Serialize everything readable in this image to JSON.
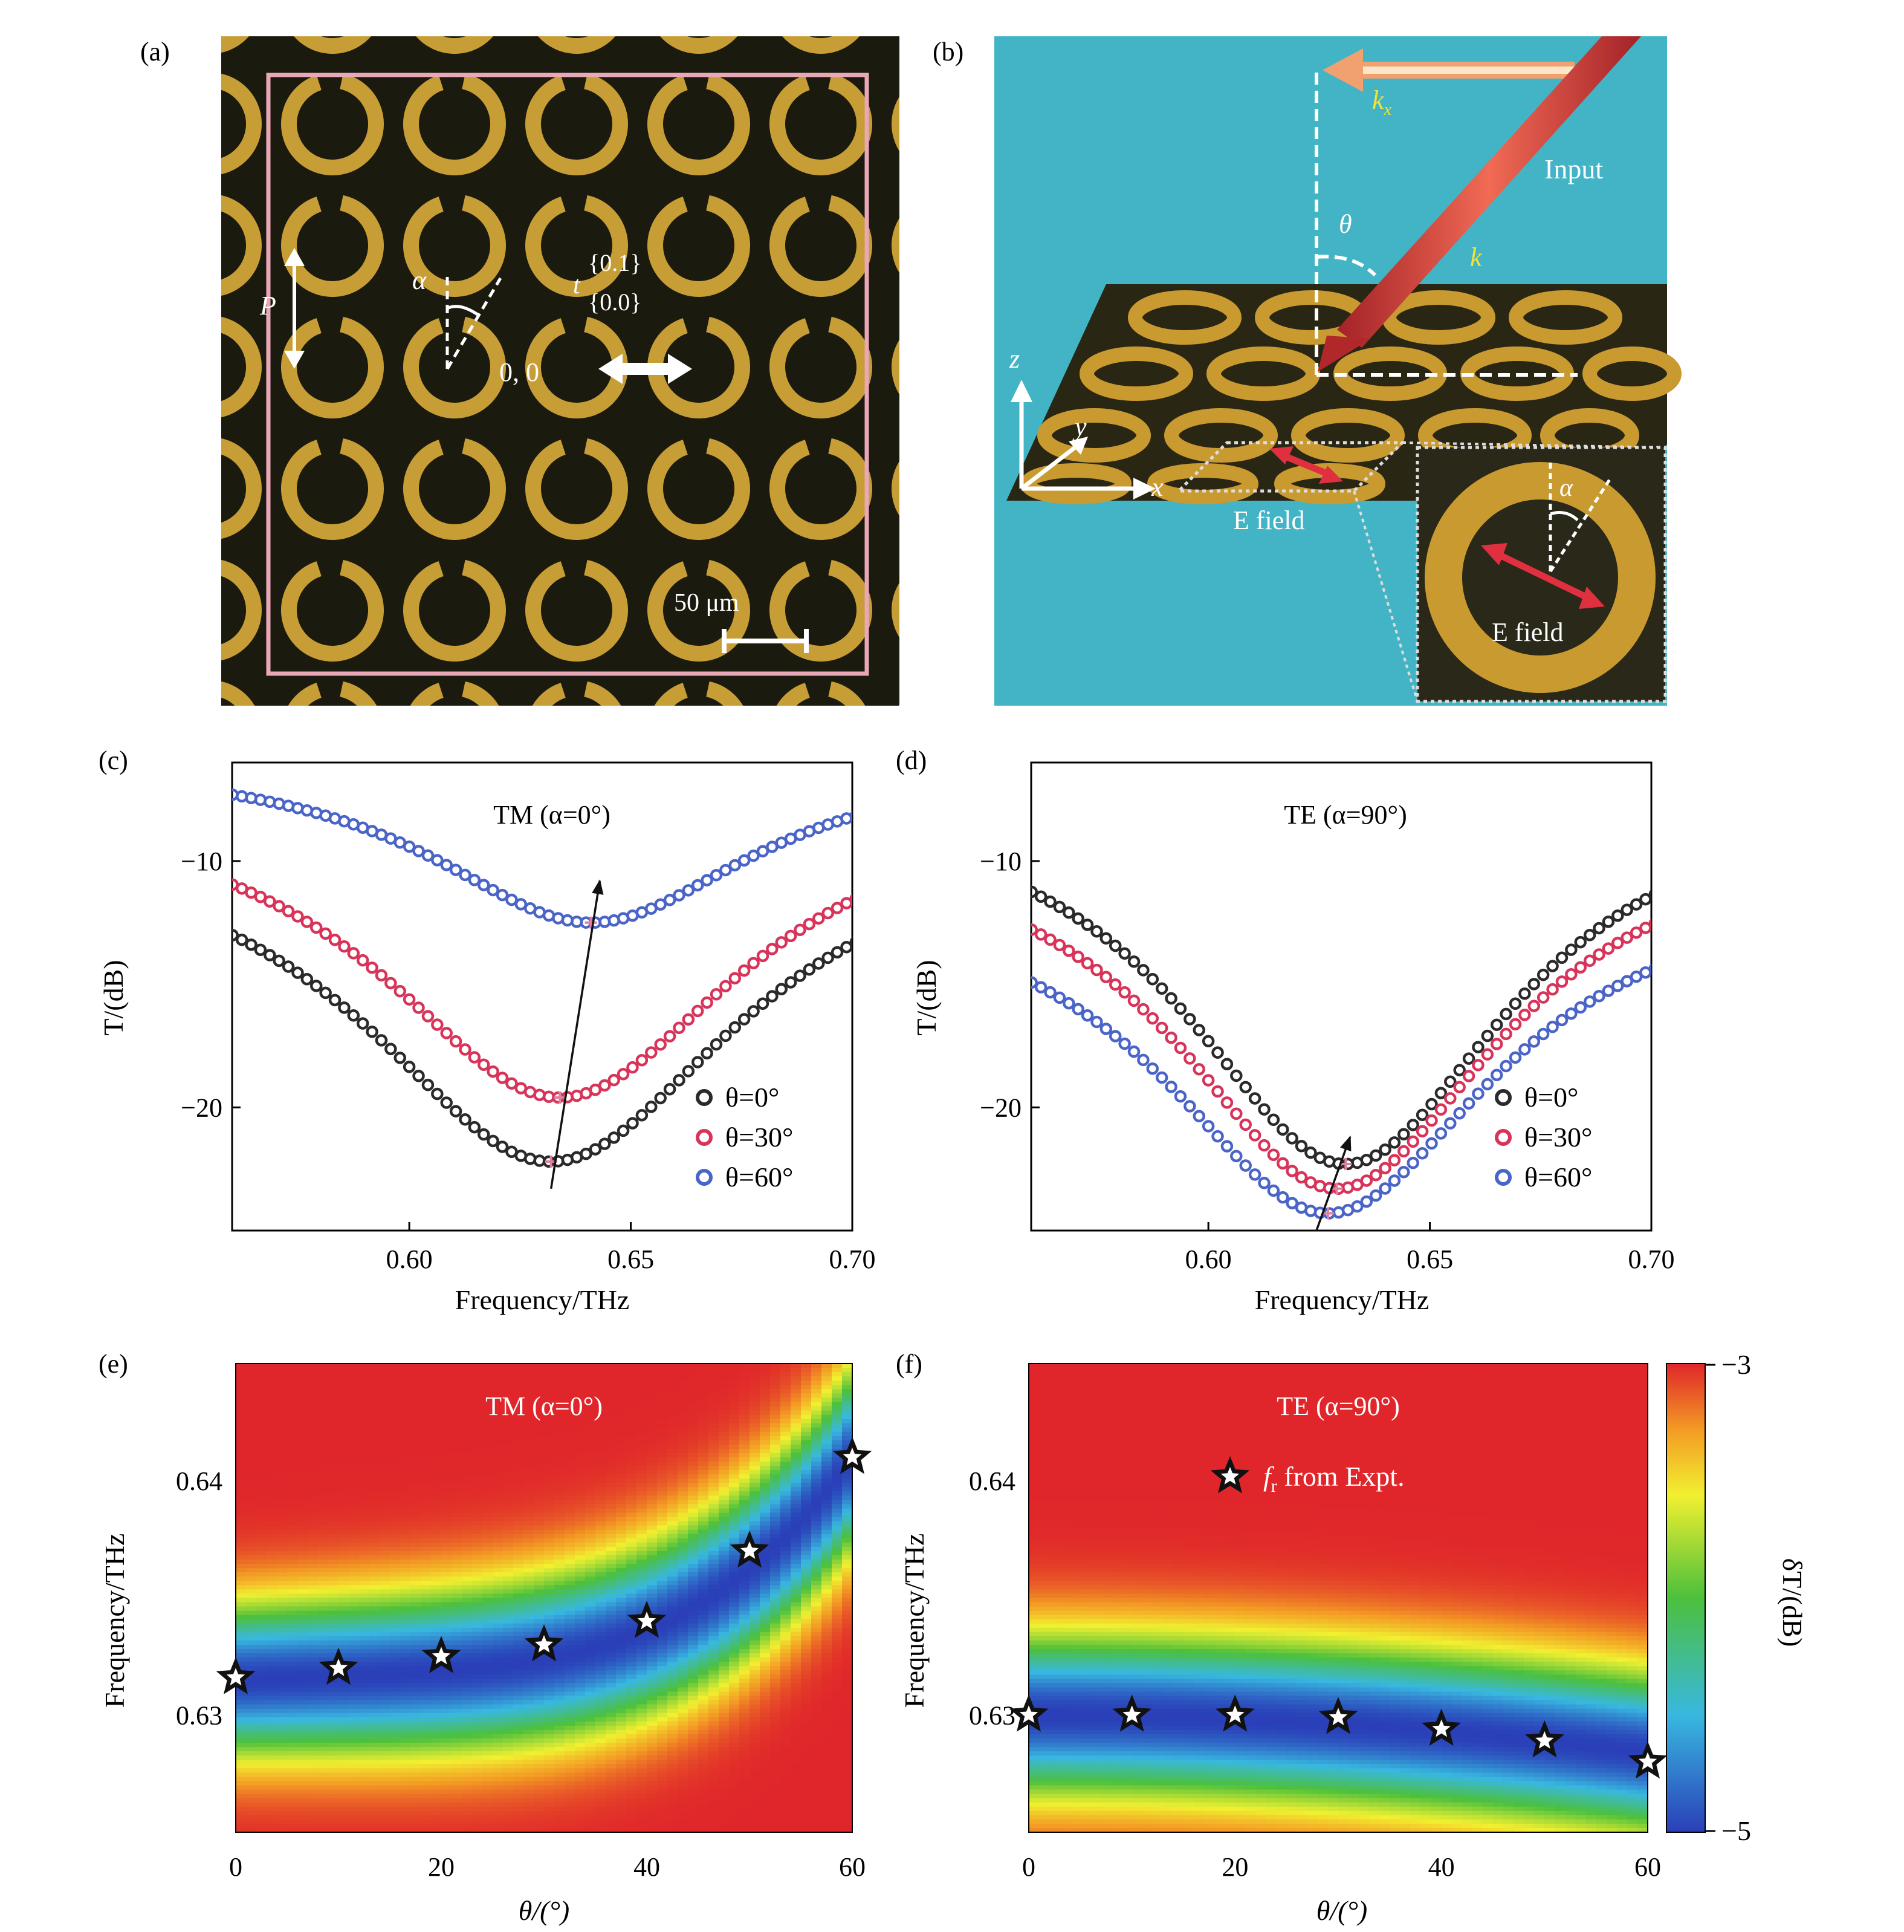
{
  "panels": {
    "a": {
      "label": "(a)",
      "labels": {
        "period": "P",
        "angle": "α",
        "twist": "t",
        "origin": "0, 0",
        "index_upper": "{0.1}",
        "index_lower": "{0.0}",
        "scale": "50 μm"
      },
      "colors": {
        "background": "#1b1a0e",
        "ring": "#c79d35",
        "frame": "#e8a8b8"
      }
    },
    "b": {
      "label": "(b)",
      "labels": {
        "kx": "k",
        "kx_sub": "x",
        "theta": "θ",
        "k": "k",
        "input": "Input",
        "z": "z",
        "y": "y",
        "x": "x",
        "efield": "E field",
        "alpha": "α",
        "efield_inset": "E field"
      },
      "colors": {
        "background": "#43b4c6",
        "beam": "#c83030",
        "label_yellow": "#f3e23a"
      }
    },
    "c": {
      "label": "(c)"
    },
    "d": {
      "label": "(d)"
    },
    "e": {
      "label": "(e)"
    },
    "f": {
      "label": "(f)"
    }
  },
  "chart_data": [
    {
      "id": "c",
      "type": "scatter",
      "title": "TM (α=0°)",
      "xlabel": "Frequency/THz",
      "ylabel": "T/(dB)",
      "xlim": [
        0.56,
        0.7
      ],
      "ylim": [
        -25,
        -6
      ],
      "xticks": [
        0.6,
        0.65,
        0.7
      ],
      "xticklabels": [
        "0.60",
        "0.65",
        "0.70"
      ],
      "yticks": [
        -10,
        -20
      ],
      "yticklabels": [
        "−10",
        "−20"
      ],
      "series": [
        {
          "name": "θ=0°",
          "color": "#2a2a2a",
          "f0": 0.632,
          "dip": -22.2,
          "edge": -8.2,
          "width": 0.052
        },
        {
          "name": "θ=30°",
          "color": "#d8345a",
          "f0": 0.634,
          "dip": -19.6,
          "edge": -7.0,
          "width": 0.05
        },
        {
          "name": "θ=60°",
          "color": "#4a64c8",
          "f0": 0.641,
          "dip": -12.5,
          "edge": -5.7,
          "width": 0.045
        }
      ],
      "arrow": {
        "from": [
          0.632,
          -23.3
        ],
        "to": [
          0.643,
          -10.8
        ]
      }
    },
    {
      "id": "d",
      "type": "scatter",
      "title": "TE (α=90°)",
      "xlabel": "Frequency/THz",
      "ylabel": "T/(dB)",
      "xlim": [
        0.56,
        0.7
      ],
      "ylim": [
        -25,
        -6
      ],
      "xticks": [
        0.6,
        0.65,
        0.7
      ],
      "xticklabels": [
        "0.60",
        "0.65",
        "0.70"
      ],
      "yticks": [
        -10,
        -20
      ],
      "yticklabels": [
        "−10",
        "−20"
      ],
      "series": [
        {
          "name": "θ=0°",
          "color": "#2a2a2a",
          "f0": 0.631,
          "dip": -22.3,
          "edge": -6.8,
          "width": 0.045
        },
        {
          "name": "θ=30°",
          "color": "#d8345a",
          "f0": 0.629,
          "dip": -23.3,
          "edge": -8.3,
          "width": 0.045
        },
        {
          "name": "θ=60°",
          "color": "#4a64c8",
          "f0": 0.627,
          "dip": -24.3,
          "edge": -10.5,
          "width": 0.046
        }
      ],
      "arrow": {
        "from": [
          0.624,
          -25.2
        ],
        "to": [
          0.632,
          -21.2
        ]
      }
    },
    {
      "id": "e",
      "type": "heatmap",
      "title": "TM (α=0°)",
      "xlabel": "θ/(°)",
      "ylabel": "Frequency/THz",
      "xlim": [
        0,
        60
      ],
      "ylim": [
        0.625,
        0.645
      ],
      "xticks": [
        0,
        20,
        40,
        60
      ],
      "xticklabels": [
        "0",
        "20",
        "40",
        "60"
      ],
      "yticks": [
        0.63,
        0.64
      ],
      "yticklabels": [
        "0.63",
        "0.64"
      ],
      "stars": [
        [
          0,
          0.6316
        ],
        [
          10,
          0.632
        ],
        [
          20,
          0.6325
        ],
        [
          30,
          0.633
        ],
        [
          40,
          0.634
        ],
        [
          50,
          0.637
        ],
        [
          60,
          0.641
        ]
      ]
    },
    {
      "id": "f",
      "type": "heatmap",
      "title": "TE (α=90°)",
      "xlabel": "θ/(°)",
      "ylabel": "Frequency/THz",
      "xlim": [
        0,
        60
      ],
      "ylim": [
        0.625,
        0.645
      ],
      "xticks": [
        0,
        20,
        40,
        60
      ],
      "xticklabels": [
        "0",
        "20",
        "40",
        "60"
      ],
      "yticks": [
        0.63,
        0.64
      ],
      "yticklabels": [
        "0.63",
        "0.64"
      ],
      "stars": [
        [
          0,
          0.63
        ],
        [
          10,
          0.63
        ],
        [
          20,
          0.63
        ],
        [
          30,
          0.6299
        ],
        [
          40,
          0.6294
        ],
        [
          50,
          0.6289
        ],
        [
          60,
          0.628
        ]
      ],
      "legend": {
        "symbol": "f",
        "sub": "r",
        "text": " from Expt."
      },
      "colorbar": {
        "label": "δT/(dB)",
        "min": -5,
        "max": -3,
        "max_label": "−3",
        "min_label": "−5"
      }
    }
  ]
}
